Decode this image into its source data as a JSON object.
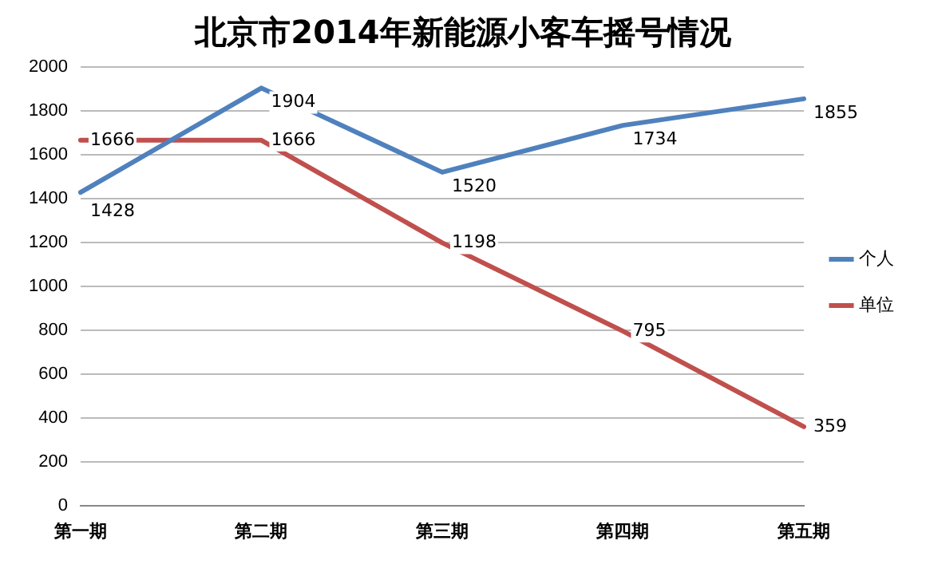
{
  "chart_data": {
    "type": "line",
    "title": "北京市2014年新能源小客车摇号情况",
    "categories": [
      "第一期",
      "第二期",
      "第三期",
      "第四期",
      "第五期"
    ],
    "series": [
      {
        "name": "个人",
        "color": "#4f81bd",
        "values": [
          1428,
          1904,
          1520,
          1734,
          1855
        ]
      },
      {
        "name": "单位",
        "color": "#c0504d",
        "values": [
          1666,
          1666,
          1198,
          795,
          359
        ]
      }
    ],
    "ylim": [
      0,
      2000
    ],
    "yticks": [
      0,
      200,
      400,
      600,
      800,
      1000,
      1200,
      1400,
      1600,
      1800,
      2000
    ],
    "grid": "y",
    "legend": "right",
    "marker": "none",
    "line_style": "solid",
    "data_labels": true
  }
}
